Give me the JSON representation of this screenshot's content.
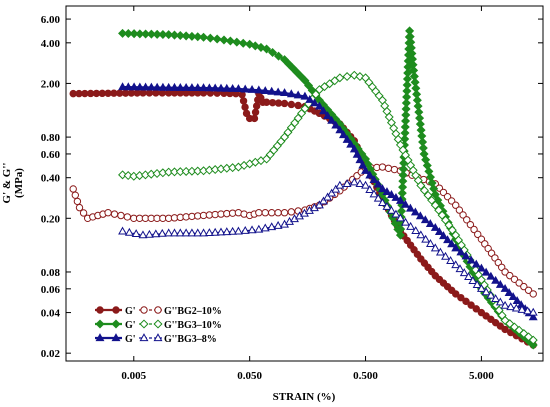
{
  "chart_data": {
    "type": "line",
    "xlabel": "STRAIN (%)",
    "ylabel_line1": "G' & G''",
    "ylabel_line2": "(MPa)",
    "x_scale": "log",
    "y_scale": "log",
    "xlim": [
      0.0013,
      17
    ],
    "ylim": [
      0.0175,
      7.5
    ],
    "x_ticks": [
      {
        "value": 0.005,
        "label": "0.005"
      },
      {
        "value": 0.05,
        "label": "0.050"
      },
      {
        "value": 0.5,
        "label": "0.500"
      },
      {
        "value": 5,
        "label": "5.000"
      }
    ],
    "y_ticks": [
      {
        "value": 6,
        "label": "6.00"
      },
      {
        "value": 4,
        "label": "4.00"
      },
      {
        "value": 2,
        "label": "2.00"
      },
      {
        "value": 0.8,
        "label": "0.80"
      },
      {
        "value": 0.6,
        "label": "0.60"
      },
      {
        "value": 0.4,
        "label": "0.40"
      },
      {
        "value": 0.2,
        "label": "0.20"
      },
      {
        "value": 0.08,
        "label": "0.08"
      },
      {
        "value": 0.06,
        "label": "0.06"
      },
      {
        "value": 0.04,
        "label": "0.04"
      },
      {
        "value": 0.02,
        "label": "0.02"
      }
    ],
    "grid": false,
    "legend_position": "bottom-left",
    "legend": [
      {
        "storage_label": "G'",
        "loss_label": "G''BG2–10%"
      },
      {
        "storage_label": "G'",
        "loss_label": "G''BG3–10%"
      },
      {
        "storage_label": "G'",
        "loss_label": "G''BG3–8%"
      }
    ],
    "series": [
      {
        "material": "BG2–10%",
        "modulus": "G'",
        "color": "#8b1a1a",
        "marker": "filled-circle",
        "line": "solid",
        "x": [
          0.0015,
          0.003,
          0.006,
          0.01,
          0.02,
          0.03,
          0.038,
          0.043,
          0.047,
          0.05,
          0.055,
          0.06,
          0.065,
          0.07,
          0.1,
          0.15,
          0.2,
          0.3,
          0.4,
          0.5,
          0.7,
          1,
          1.5,
          2,
          3,
          5,
          8,
          14
        ],
        "y": [
          1.68,
          1.69,
          1.7,
          1.7,
          1.7,
          1.69,
          1.68,
          1.65,
          1.2,
          1.1,
          1.1,
          1.68,
          1.45,
          1.45,
          1.42,
          1.35,
          1.2,
          1.0,
          0.75,
          0.5,
          0.28,
          0.16,
          0.1,
          0.075,
          0.055,
          0.04,
          0.03,
          0.023
        ]
      },
      {
        "material": "BG2–10%",
        "modulus": "G''",
        "color": "#8b1a1a",
        "marker": "open-circle",
        "line": "dashed",
        "x": [
          0.0015,
          0.0017,
          0.002,
          0.003,
          0.005,
          0.01,
          0.02,
          0.04,
          0.05,
          0.06,
          0.1,
          0.15,
          0.2,
          0.3,
          0.5,
          0.7,
          1,
          2,
          3,
          5,
          8,
          14
        ],
        "y": [
          0.33,
          0.24,
          0.2,
          0.22,
          0.2,
          0.2,
          0.21,
          0.22,
          0.21,
          0.22,
          0.22,
          0.23,
          0.25,
          0.32,
          0.47,
          0.48,
          0.45,
          0.36,
          0.25,
          0.14,
          0.08,
          0.055
        ]
      },
      {
        "material": "BG3–10%",
        "modulus": "G'",
        "color": "#1e8c1e",
        "marker": "filled-diamond",
        "line": "solid",
        "x": [
          0.004,
          0.01,
          0.02,
          0.03,
          0.05,
          0.07,
          0.1,
          0.15,
          0.2,
          0.3,
          0.5,
          0.7,
          1,
          1.2,
          1.3,
          1.6,
          2,
          3,
          5,
          8,
          14
        ],
        "y": [
          4.7,
          4.6,
          4.4,
          4.2,
          3.9,
          3.6,
          3.0,
          2.1,
          1.5,
          1.0,
          0.55,
          0.3,
          0.15,
          4.9,
          2.5,
          0.6,
          0.3,
          0.14,
          0.06,
          0.035,
          0.023
        ]
      },
      {
        "material": "BG3–10%",
        "modulus": "G''",
        "color": "#1e8c1e",
        "marker": "open-diamond",
        "line": "dashed",
        "x": [
          0.004,
          0.005,
          0.01,
          0.02,
          0.04,
          0.07,
          0.1,
          0.15,
          0.2,
          0.3,
          0.4,
          0.5,
          0.7,
          1,
          1.5,
          2,
          3,
          5,
          8,
          14
        ],
        "y": [
          0.42,
          0.41,
          0.44,
          0.45,
          0.48,
          0.55,
          0.8,
          1.3,
          1.8,
          2.2,
          2.3,
          2.2,
          1.5,
          0.7,
          0.35,
          0.25,
          0.15,
          0.07,
          0.035,
          0.025
        ]
      },
      {
        "material": "BG3–8%",
        "modulus": "G'",
        "color": "#12128c",
        "marker": "filled-triangle",
        "line": "solid",
        "x": [
          0.004,
          0.01,
          0.02,
          0.04,
          0.06,
          0.1,
          0.15,
          0.2,
          0.3,
          0.4,
          0.5,
          0.7,
          1,
          2,
          3,
          5,
          8,
          14
        ],
        "y": [
          1.88,
          1.86,
          1.85,
          1.82,
          1.78,
          1.7,
          1.6,
          1.35,
          0.9,
          0.65,
          0.45,
          0.33,
          0.27,
          0.17,
          0.12,
          0.085,
          0.06,
          0.037
        ]
      },
      {
        "material": "BG3–8%",
        "modulus": "G''",
        "color": "#12128c",
        "marker": "open-triangle",
        "line": "dashed",
        "x": [
          0.004,
          0.006,
          0.01,
          0.02,
          0.04,
          0.06,
          0.1,
          0.2,
          0.3,
          0.4,
          0.5,
          0.7,
          1,
          1.5,
          2,
          3,
          5,
          8,
          14
        ],
        "y": [
          0.16,
          0.15,
          0.155,
          0.155,
          0.16,
          0.165,
          0.18,
          0.25,
          0.35,
          0.37,
          0.35,
          0.26,
          0.2,
          0.15,
          0.12,
          0.09,
          0.06,
          0.045,
          0.04
        ]
      }
    ]
  }
}
